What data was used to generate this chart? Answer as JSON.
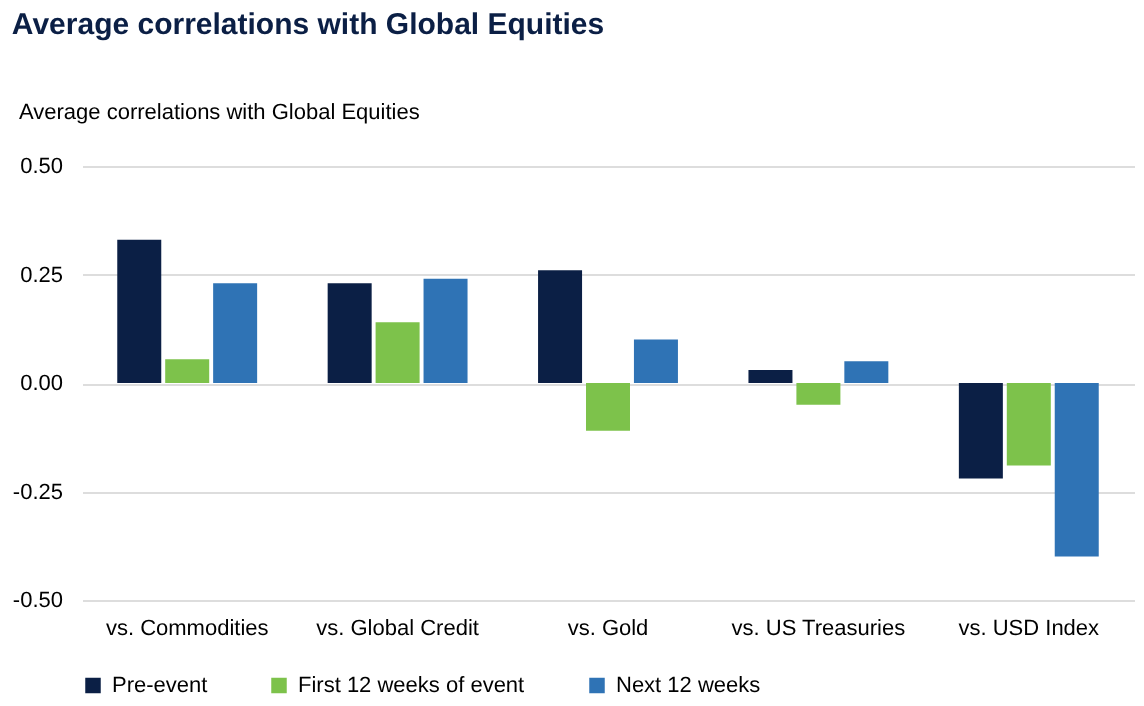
{
  "chart_data": {
    "type": "bar",
    "title": "Average correlations with Global Equities",
    "ylabel": "Average correlations with Global Equities",
    "categories": [
      "vs. Commodities",
      "vs. Global Credit",
      "vs. Gold",
      "vs. US Treasuries",
      "vs. USD Index"
    ],
    "series": [
      {
        "name": "Pre-event",
        "color": "#0b1f45",
        "values": [
          0.33,
          0.23,
          0.26,
          0.03,
          -0.22
        ]
      },
      {
        "name": "First 12 weeks of event",
        "color": "#7dc24b",
        "values": [
          0.055,
          0.14,
          -0.11,
          -0.05,
          -0.19
        ]
      },
      {
        "name": "Next 12 weeks",
        "color": "#2f73b5",
        "values": [
          0.23,
          0.24,
          0.1,
          0.05,
          -0.4
        ]
      }
    ],
    "ylim": [
      -0.5,
      0.5
    ],
    "yticks": [
      {
        "value": -0.5,
        "label": "-0.50"
      },
      {
        "value": -0.25,
        "label": "-0.25"
      },
      {
        "value": 0,
        "label": "0.00"
      },
      {
        "value": 0.25,
        "label": "0.25"
      },
      {
        "value": 0.5,
        "label": "0.50"
      }
    ],
    "grid": "y",
    "legend": "bottom"
  }
}
